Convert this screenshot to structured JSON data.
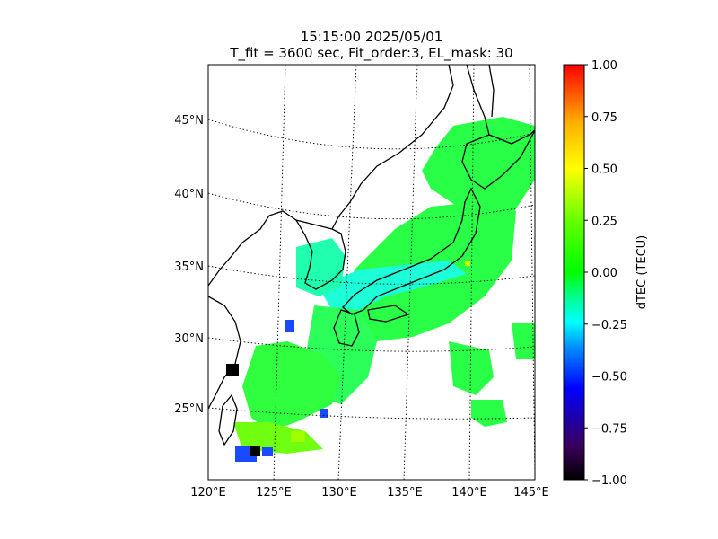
{
  "title": {
    "line1": "15:15:00 2025/05/01",
    "line2": "T_fit = 3600 sec, Fit_order:3, EL_mask: 30"
  },
  "map": {
    "lat_ticks": [
      "45°N",
      "40°N",
      "35°N",
      "30°N",
      "25°N"
    ],
    "lon_ticks": [
      "120°E",
      "125°E",
      "130°E",
      "135°E",
      "140°E",
      "145°E"
    ],
    "extent": {
      "lon_min": 120,
      "lon_max": 145,
      "lat_min": 20,
      "lat_max": 49
    },
    "projection": "orthographic-like (curved parallels, converging meridians)",
    "grid": "dotted",
    "coastline_color": "#000000"
  },
  "colorbar": {
    "label": "dTEC (TECU)",
    "ticks": [
      "1.00",
      "0.75",
      "0.50",
      "0.25",
      "0.00",
      "−0.25",
      "−0.50",
      "−0.75",
      "−1.00"
    ],
    "range": [
      -1.0,
      1.0
    ],
    "colormap": "gist_ncar-like",
    "stops": [
      "#000000",
      "#3a005a",
      "#0000ff",
      "#0090ff",
      "#00ffff",
      "#00ff90",
      "#00ff00",
      "#60ff00",
      "#ffff00",
      "#ffb000",
      "#ff0000"
    ]
  },
  "overlay_dominant_colors": {
    "mainland_japan": "#2aff48",
    "coastal_low": "#1cffd8",
    "negative_spots": "#1a4aff",
    "strong_negative": "#000000"
  }
}
